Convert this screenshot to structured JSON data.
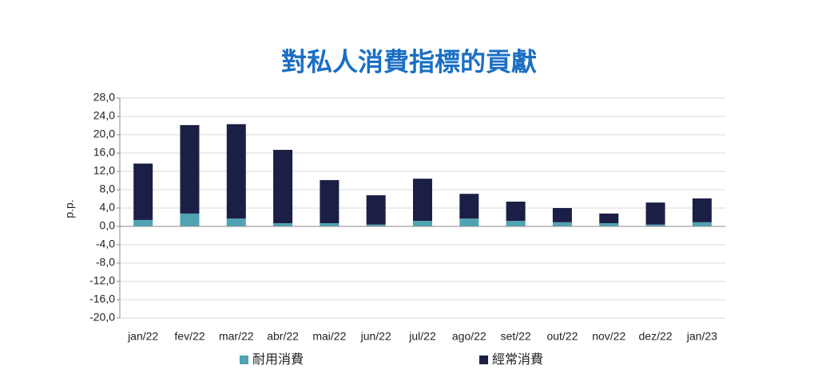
{
  "chart_data": {
    "type": "stacked_bar",
    "title": "對私人消費指標的貢獻",
    "y_label": "p.p.",
    "categories": [
      "jan/22",
      "fev/22",
      "mar/22",
      "abr/22",
      "mai/22",
      "jun/22",
      "jul/22",
      "ago/22",
      "set/22",
      "out/22",
      "nov/22",
      "dez/22",
      "jan/23"
    ],
    "series": [
      {
        "name": "耐用消費",
        "color": "#4fa3b4",
        "values": [
          1.4,
          2.8,
          1.7,
          0.7,
          0.7,
          0.4,
          1.2,
          1.7,
          1.2,
          0.9,
          0.7,
          0.4,
          0.9
        ]
      },
      {
        "name": "經常消費",
        "color": "#1c1f45",
        "values": [
          12.3,
          19.3,
          20.6,
          16.0,
          9.4,
          6.4,
          9.2,
          5.4,
          4.2,
          3.1,
          2.1,
          4.8,
          5.2
        ]
      }
    ],
    "ylim": [
      -20,
      28
    ],
    "yticks": [
      {
        "value": 28,
        "label": "28,0"
      },
      {
        "value": 24,
        "label": "24,0"
      },
      {
        "value": 20,
        "label": "20,0"
      },
      {
        "value": 16,
        "label": "16,0"
      },
      {
        "value": 12,
        "label": "12,0"
      },
      {
        "value": 8,
        "label": "8,0"
      },
      {
        "value": 4,
        "label": "4,0"
      },
      {
        "value": 0,
        "label": "0,0"
      },
      {
        "value": -4,
        "label": "-4,0"
      },
      {
        "value": -8,
        "label": "-8,0"
      },
      {
        "value": -12,
        "label": "-12,0"
      },
      {
        "value": -16,
        "label": "-16,0"
      },
      {
        "value": -20,
        "label": "-20,0"
      }
    ],
    "grid": true,
    "legend": "bottom"
  }
}
